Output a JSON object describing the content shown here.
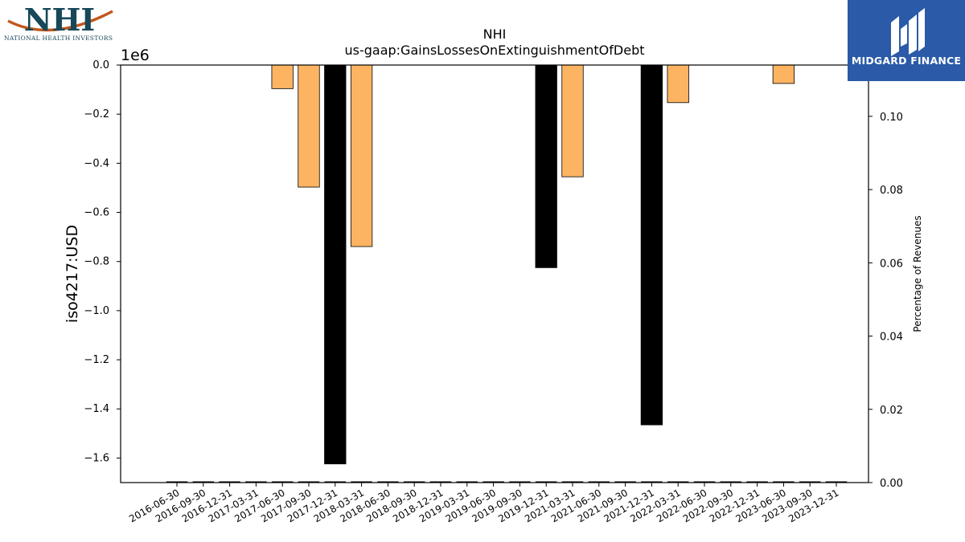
{
  "logos": {
    "left_text": "NHI",
    "left_subtitle": "NATIONAL HEALTH INVESTORS",
    "right_text": "MIDGARD FINANCE"
  },
  "colors": {
    "bar_dark": "#000000",
    "bar_light": "#fdb462",
    "logo_blue": "#2a5aa8",
    "logo_teal": "#17485a",
    "logo_orange": "#c0581e"
  },
  "chart_data": {
    "type": "bar",
    "title": "NHI",
    "subtitle": "us-gaap:GainsLossesOnExtinguishmentOfDebt",
    "ylabel": "iso4217:USD",
    "y2label": "Percentage of Revenues",
    "yoffset_label": "1e6",
    "ylim": [
      -1.7,
      0.0
    ],
    "y2lim": [
      0.0,
      0.114
    ],
    "yticks": [
      "0.0",
      "−0.2",
      "−0.4",
      "−0.6",
      "−0.8",
      "−1.0",
      "−1.2",
      "−1.4",
      "−1.6"
    ],
    "y2ticks": [
      "0.00",
      "0.02",
      "0.04",
      "0.06",
      "0.08",
      "0.10"
    ],
    "categories": [
      "2016-06-30",
      "2016-09-30",
      "2016-12-31",
      "2017-03-31",
      "2017-06-30",
      "2017-09-30",
      "2017-12-31",
      "2018-03-31",
      "2018-06-30",
      "2018-09-30",
      "2018-12-31",
      "2019-03-31",
      "2019-06-30",
      "2019-09-30",
      "2019-12-31",
      "2021-03-31",
      "2021-06-30",
      "2021-09-30",
      "2021-12-31",
      "2022-03-31",
      "2022-06-30",
      "2022-09-30",
      "2022-12-31",
      "2023-06-30",
      "2023-09-30",
      "2023-12-31"
    ],
    "series": [
      {
        "values": [
          0,
          0,
          0,
          0,
          -0.096,
          -0.497,
          -1.624,
          -0.739,
          0,
          0,
          0,
          0,
          0,
          0,
          -0.825,
          -0.455,
          0,
          0,
          -1.465,
          -0.153,
          0,
          0,
          0,
          -0.075,
          0,
          0
        ],
        "styles": [
          "dark",
          "dark",
          "dark",
          "dark",
          "light",
          "light",
          "dark",
          "light",
          "dark",
          "dark",
          "dark",
          "dark",
          "dark",
          "dark",
          "dark",
          "light",
          "dark",
          "dark",
          "dark",
          "light",
          "dark",
          "dark",
          "dark",
          "light",
          "dark",
          "dark"
        ]
      }
    ]
  }
}
